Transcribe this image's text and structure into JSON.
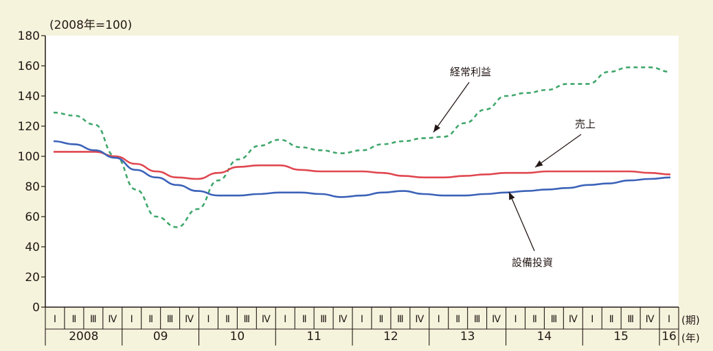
{
  "chart_data": {
    "type": "line",
    "unit_label": "(2008年=100)",
    "ylim": [
      0,
      180
    ],
    "yticks": [
      0,
      20,
      40,
      60,
      80,
      100,
      120,
      140,
      160,
      180
    ],
    "quarter_labels": [
      "Ⅰ",
      "Ⅱ",
      "Ⅲ",
      "Ⅳ",
      "Ⅰ",
      "Ⅱ",
      "Ⅲ",
      "Ⅳ",
      "Ⅰ",
      "Ⅱ",
      "Ⅲ",
      "Ⅳ",
      "Ⅰ",
      "Ⅱ",
      "Ⅲ",
      "Ⅳ",
      "Ⅰ",
      "Ⅱ",
      "Ⅲ",
      "Ⅳ",
      "Ⅰ",
      "Ⅱ",
      "Ⅲ",
      "Ⅳ",
      "Ⅰ",
      "Ⅱ",
      "Ⅲ",
      "Ⅳ",
      "Ⅰ",
      "Ⅱ",
      "Ⅲ",
      "Ⅳ",
      "Ⅰ"
    ],
    "year_labels": [
      "2008",
      "09",
      "10",
      "11",
      "12",
      "13",
      "14",
      "15",
      "16"
    ],
    "x_unit_quarter": "(期)",
    "x_unit_year": "(年)",
    "grid": false,
    "series": [
      {
        "name": "経常利益",
        "color": "#3fa66b",
        "dash": "dashed",
        "values": [
          129,
          127,
          121,
          100,
          78,
          60,
          53,
          65,
          84,
          98,
          107,
          111,
          106,
          104,
          102,
          104,
          108,
          110,
          112,
          113,
          122,
          131,
          140,
          142,
          144,
          148,
          148,
          156,
          159,
          159,
          156
        ],
        "label_point": 27,
        "annotation": {
          "text": "経常利益",
          "pos": "upper-right"
        }
      },
      {
        "name": "売上",
        "color": "#e0464f",
        "dash": "solid",
        "values": [
          103,
          103,
          103,
          100,
          95,
          90,
          86,
          85,
          89,
          93,
          94,
          94,
          91,
          90,
          90,
          90,
          89,
          87,
          86,
          86,
          87,
          88,
          89,
          89,
          90,
          90,
          90,
          90,
          90,
          89,
          88
        ],
        "annotation": {
          "text": "売上",
          "pos": "right"
        }
      },
      {
        "name": "設備投資",
        "color": "#3b62b8",
        "dash": "solid",
        "values": [
          110,
          108,
          104,
          99,
          91,
          86,
          81,
          77,
          74,
          74,
          75,
          76,
          76,
          75,
          73,
          74,
          76,
          77,
          75,
          74,
          74,
          75,
          76,
          77,
          78,
          79,
          81,
          82,
          84,
          85,
          86
        ],
        "annotation": {
          "text": "設備投資",
          "pos": "lower-right"
        }
      }
    ]
  }
}
